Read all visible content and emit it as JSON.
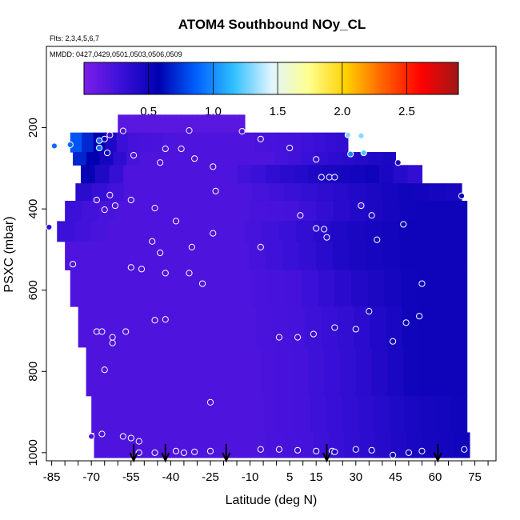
{
  "chart_data": {
    "type": "heatmap",
    "title": "ATOM4 Southbound NOy_CL",
    "flights_label": "Flts: 2,3,4,5,6,7",
    "dates_label": "MMDD: 0427,0429,0501,0503,0506,0509",
    "xlabel": "Latitude (deg N)",
    "ylabel": "PSXC (mbar)",
    "xlim": [
      -87,
      83
    ],
    "ylim": [
      1020,
      0
    ],
    "xticks": [
      "-85",
      "-70",
      "-55",
      "-40",
      "-25",
      "-10",
      "5",
      "15",
      "30",
      "45",
      "60",
      "75"
    ],
    "yticks": [
      "200",
      "400",
      "600",
      "800",
      "1000"
    ],
    "colorbar": {
      "range": [
        0,
        2.9
      ],
      "ticks": [
        "0.5",
        "1.0",
        "1.5",
        "2.0",
        "2.5"
      ],
      "colors": [
        "#7b1ee8",
        "#3a10d8",
        "#0000b0",
        "#0060ff",
        "#30c0ff",
        "#e0f4ff",
        "#ffff90",
        "#ffd000",
        "#ff6000",
        "#ff0000",
        "#a01818"
      ]
    },
    "profile_markers_lat": [
      -54,
      -42,
      -19,
      19,
      61
    ],
    "curtain_bands": [
      {
        "p": [
          168,
          212
        ],
        "lat": [
          -60,
          -12
        ],
        "values": [
          0.15,
          0.15
        ]
      },
      {
        "p": [
          212,
          260
        ],
        "lat": [
          -78,
          27
        ],
        "values": [
          0.9,
          0.25,
          0.2,
          0.2,
          0.25,
          0.35
        ]
      },
      {
        "p": [
          260,
          292
        ],
        "lat": [
          -77,
          45
        ],
        "values": [
          0.75,
          0.2,
          0.2,
          0.2,
          0.35,
          0.45
        ]
      },
      {
        "p": [
          292,
          337
        ],
        "lat": [
          -74,
          55
        ],
        "values": [
          0.6,
          0.2,
          0.2,
          0.2,
          0.35,
          0.45,
          0.5,
          0.3
        ]
      },
      {
        "p": [
          337,
          380
        ],
        "lat": [
          -76,
          70
        ],
        "values": [
          0.4,
          0.2,
          0.2,
          0.2,
          0.3,
          0.4,
          0.5,
          0.45
        ]
      },
      {
        "p": [
          380,
          430
        ],
        "lat": [
          -80,
          72
        ],
        "values": [
          0.3,
          0.2,
          0.2,
          0.2,
          0.25,
          0.4,
          0.5,
          0.5
        ]
      },
      {
        "p": [
          430,
          480
        ],
        "lat": [
          -83,
          72
        ],
        "values": [
          0.3,
          0.2,
          0.2,
          0.2,
          0.3,
          0.45,
          0.5,
          0.5
        ]
      },
      {
        "p": [
          480,
          550
        ],
        "lat": [
          -80,
          72
        ],
        "values": [
          0.2,
          0.2,
          0.2,
          0.2,
          0.3,
          0.45,
          0.5,
          0.5
        ]
      },
      {
        "p": [
          550,
          640
        ],
        "lat": [
          -78,
          72
        ],
        "values": [
          0.2,
          0.2,
          0.2,
          0.2,
          0.25,
          0.4,
          0.5,
          0.5
        ]
      },
      {
        "p": [
          640,
          740
        ],
        "lat": [
          -75,
          72
        ],
        "values": [
          0.2,
          0.2,
          0.2,
          0.2,
          0.25,
          0.35,
          0.5,
          0.5
        ]
      },
      {
        "p": [
          740,
          860
        ],
        "lat": [
          -72,
          72
        ],
        "values": [
          0.2,
          0.2,
          0.2,
          0.2,
          0.25,
          0.35,
          0.5,
          0.5
        ]
      },
      {
        "p": [
          860,
          950
        ],
        "lat": [
          -70,
          72
        ],
        "values": [
          0.2,
          0.2,
          0.2,
          0.2,
          0.25,
          0.35,
          0.45,
          0.5
        ]
      },
      {
        "p": [
          950,
          1012
        ],
        "lat": [
          -69,
          73
        ],
        "values": [
          0.2,
          0.2,
          0.2,
          0.2,
          0.25,
          0.35,
          0.45,
          0.5
        ]
      }
    ],
    "observations": [
      {
        "lat": -58,
        "p": 208,
        "v": 0.2
      },
      {
        "lat": -33,
        "p": 207,
        "v": 0.2
      },
      {
        "lat": -13,
        "p": 209,
        "v": 0.2
      },
      {
        "lat": -63,
        "p": 218,
        "v": 0.3
      },
      {
        "lat": -65,
        "p": 228,
        "v": 0.5
      },
      {
        "lat": -67,
        "p": 232,
        "v": 0.9
      },
      {
        "lat": -78,
        "p": 242,
        "v": 0.9
      },
      {
        "lat": -84,
        "p": 245,
        "v": 0.9
      },
      {
        "lat": -67,
        "p": 250,
        "v": 0.9
      },
      {
        "lat": -6,
        "p": 228,
        "v": 0.2
      },
      {
        "lat": 27,
        "p": 218,
        "v": 1.3
      },
      {
        "lat": 32,
        "p": 220,
        "v": 1.3
      },
      {
        "lat": 5,
        "p": 250,
        "v": 0.3
      },
      {
        "lat": -42,
        "p": 252,
        "v": 0.2
      },
      {
        "lat": -36,
        "p": 252,
        "v": 0.2
      },
      {
        "lat": -64,
        "p": 262,
        "v": 0.5
      },
      {
        "lat": -54,
        "p": 268,
        "v": 0.2
      },
      {
        "lat": -44,
        "p": 286,
        "v": 0.2
      },
      {
        "lat": -31,
        "p": 276,
        "v": 0.2
      },
      {
        "lat": -24,
        "p": 296,
        "v": 0.2
      },
      {
        "lat": 15,
        "p": 278,
        "v": 0.3
      },
      {
        "lat": 28,
        "p": 265,
        "v": 1.0
      },
      {
        "lat": 33,
        "p": 262,
        "v": 1.2
      },
      {
        "lat": 46,
        "p": 286,
        "v": 0.45
      },
      {
        "lat": 17,
        "p": 322,
        "v": 0.4
      },
      {
        "lat": 20,
        "p": 322,
        "v": 0.4
      },
      {
        "lat": 22,
        "p": 322,
        "v": 0.4
      },
      {
        "lat": -23,
        "p": 356,
        "v": 0.2
      },
      {
        "lat": -63,
        "p": 366,
        "v": 0.2
      },
      {
        "lat": -68,
        "p": 378,
        "v": 0.2
      },
      {
        "lat": -55,
        "p": 378,
        "v": 0.2
      },
      {
        "lat": -61,
        "p": 392,
        "v": 0.2
      },
      {
        "lat": -65,
        "p": 402,
        "v": 0.2
      },
      {
        "lat": -46,
        "p": 398,
        "v": 0.2
      },
      {
        "lat": 32,
        "p": 392,
        "v": 0.25
      },
      {
        "lat": 9,
        "p": 416,
        "v": 0.25
      },
      {
        "lat": 36,
        "p": 416,
        "v": 0.4
      },
      {
        "lat": 70,
        "p": 368,
        "v": 0.5
      },
      {
        "lat": 48,
        "p": 438,
        "v": 0.5
      },
      {
        "lat": -38,
        "p": 430,
        "v": 0.2
      },
      {
        "lat": -24,
        "p": 460,
        "v": 0.2
      },
      {
        "lat": 15,
        "p": 448,
        "v": 0.3
      },
      {
        "lat": 18,
        "p": 450,
        "v": 0.35
      },
      {
        "lat": -86,
        "p": 445,
        "v": 0.3
      },
      {
        "lat": 19,
        "p": 470,
        "v": 0.35
      },
      {
        "lat": 38,
        "p": 476,
        "v": 0.45
      },
      {
        "lat": -47,
        "p": 480,
        "v": 0.2
      },
      {
        "lat": -32,
        "p": 494,
        "v": 0.2
      },
      {
        "lat": -6,
        "p": 494,
        "v": 0.2
      },
      {
        "lat": -44,
        "p": 508,
        "v": 0.2
      },
      {
        "lat": -77,
        "p": 536,
        "v": 0.2
      },
      {
        "lat": -55,
        "p": 544,
        "v": 0.2
      },
      {
        "lat": -51,
        "p": 548,
        "v": 0.2
      },
      {
        "lat": -42,
        "p": 558,
        "v": 0.2
      },
      {
        "lat": -33,
        "p": 558,
        "v": 0.2
      },
      {
        "lat": -28,
        "p": 584,
        "v": 0.2
      },
      {
        "lat": 55,
        "p": 584,
        "v": 0.5
      },
      {
        "lat": 35,
        "p": 652,
        "v": 0.45
      },
      {
        "lat": 54,
        "p": 664,
        "v": 0.5
      },
      {
        "lat": -42,
        "p": 672,
        "v": 0.2
      },
      {
        "lat": -46,
        "p": 674,
        "v": 0.2
      },
      {
        "lat": 49,
        "p": 680,
        "v": 0.5
      },
      {
        "lat": 30,
        "p": 696,
        "v": 0.4
      },
      {
        "lat": 22,
        "p": 692,
        "v": 0.35
      },
      {
        "lat": -68,
        "p": 702,
        "v": 0.2
      },
      {
        "lat": -66,
        "p": 702,
        "v": 0.2
      },
      {
        "lat": -57,
        "p": 702,
        "v": 0.2
      },
      {
        "lat": -62,
        "p": 716,
        "v": 0.2
      },
      {
        "lat": -62,
        "p": 730,
        "v": 0.2
      },
      {
        "lat": 1,
        "p": 716,
        "v": 0.2
      },
      {
        "lat": 8,
        "p": 716,
        "v": 0.25
      },
      {
        "lat": 14,
        "p": 708,
        "v": 0.3
      },
      {
        "lat": 44,
        "p": 726,
        "v": 0.5
      },
      {
        "lat": -65,
        "p": 796,
        "v": 0.2
      },
      {
        "lat": -25,
        "p": 876,
        "v": 0.2
      },
      {
        "lat": -70,
        "p": 960,
        "v": 0.2
      },
      {
        "lat": -66,
        "p": 954,
        "v": 0.2
      },
      {
        "lat": -58,
        "p": 960,
        "v": 0.2
      },
      {
        "lat": -55,
        "p": 964,
        "v": 0.2
      },
      {
        "lat": -52,
        "p": 972,
        "v": 0.2
      },
      {
        "lat": -52,
        "p": 1000,
        "v": 0.2
      },
      {
        "lat": -46,
        "p": 1000,
        "v": 0.2
      },
      {
        "lat": -38,
        "p": 996,
        "v": 0.2
      },
      {
        "lat": -35,
        "p": 1000,
        "v": 0.2
      },
      {
        "lat": -31,
        "p": 998,
        "v": 0.2
      },
      {
        "lat": -25,
        "p": 996,
        "v": 0.2
      },
      {
        "lat": -6,
        "p": 992,
        "v": 0.25
      },
      {
        "lat": 1,
        "p": 992,
        "v": 0.25
      },
      {
        "lat": 8,
        "p": 994,
        "v": 0.3
      },
      {
        "lat": 15,
        "p": 996,
        "v": 0.35
      },
      {
        "lat": 21,
        "p": 996,
        "v": 0.4
      },
      {
        "lat": 22,
        "p": 998,
        "v": 0.4
      },
      {
        "lat": 30,
        "p": 992,
        "v": 0.45
      },
      {
        "lat": 36,
        "p": 994,
        "v": 0.45
      },
      {
        "lat": 44,
        "p": 1006,
        "v": 0.5
      },
      {
        "lat": 50,
        "p": 1000,
        "v": 0.5
      },
      {
        "lat": 55,
        "p": 996,
        "v": 0.5
      },
      {
        "lat": 71,
        "p": 992,
        "v": 0.5
      }
    ]
  }
}
